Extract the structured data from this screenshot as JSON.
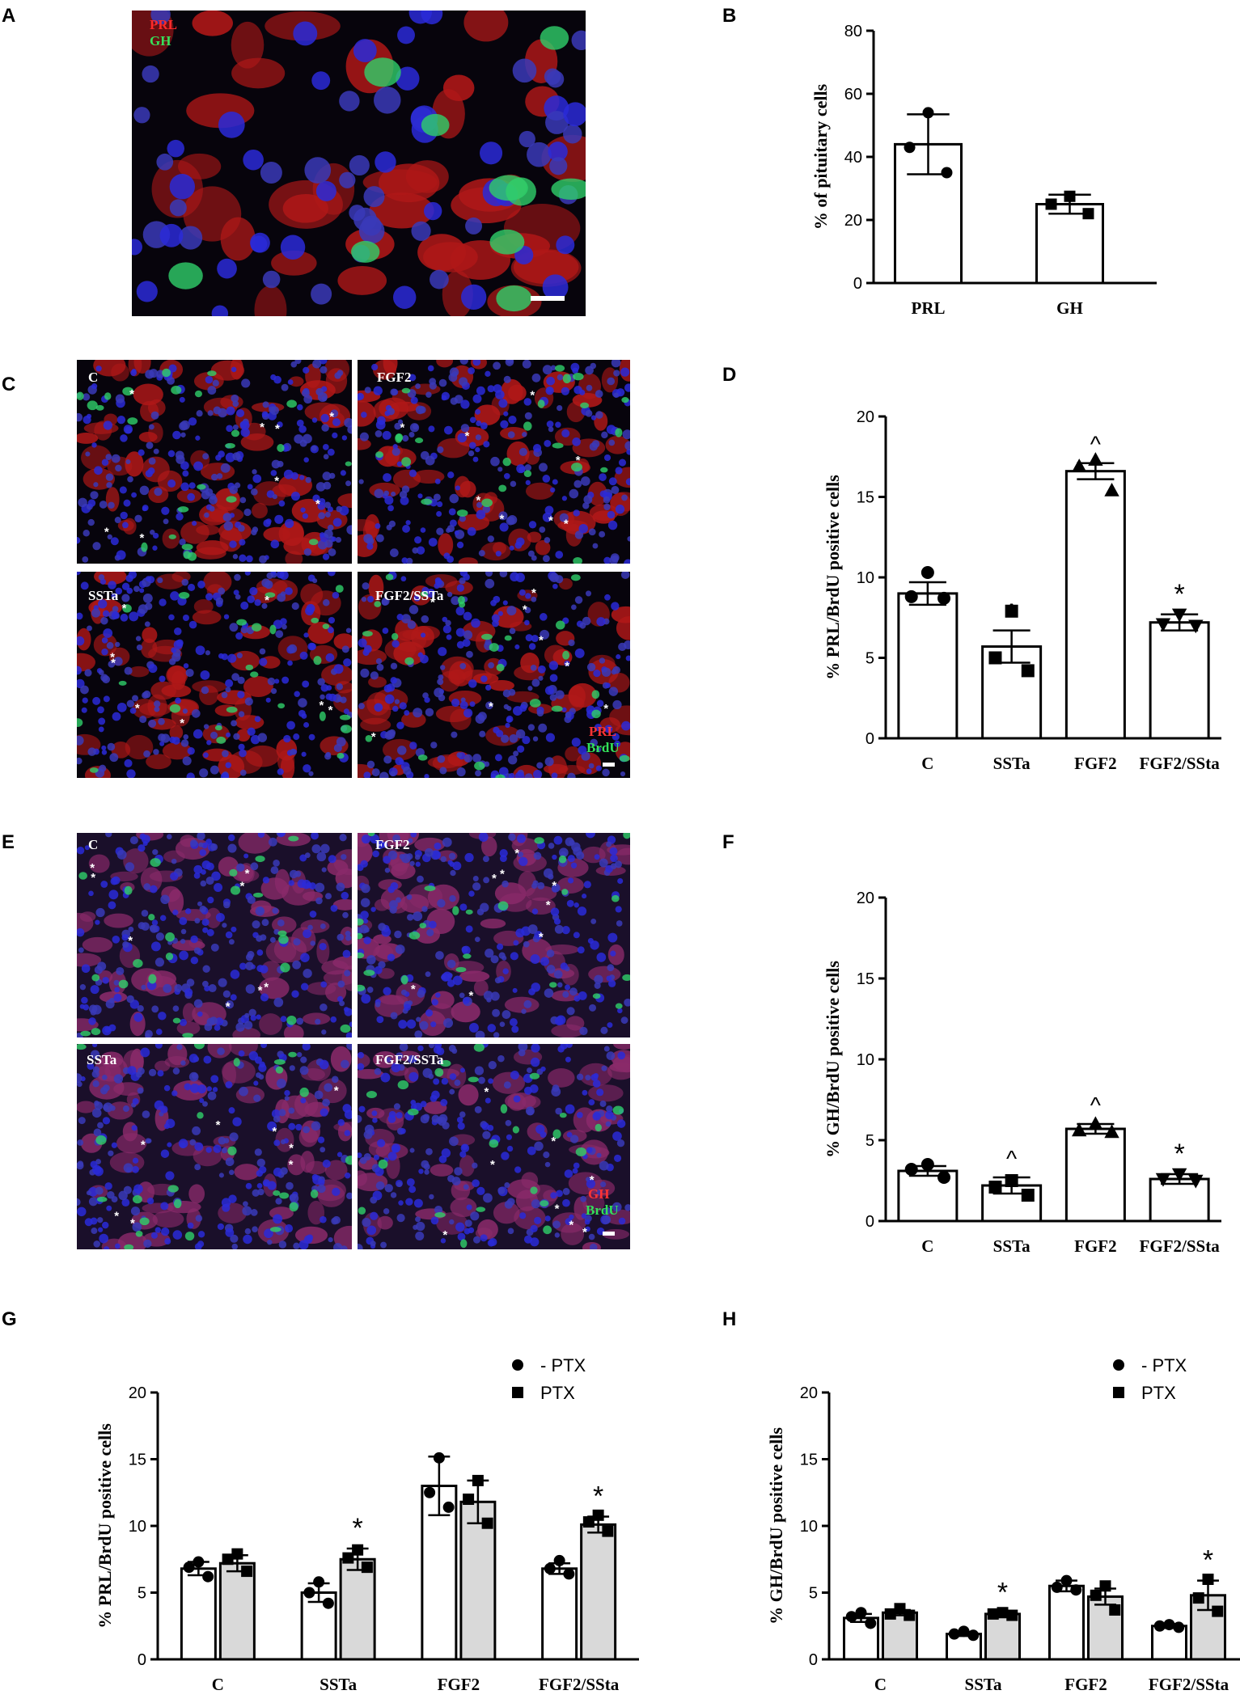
{
  "panels": {
    "A": {
      "letter": "A",
      "stains": [
        {
          "label": "PRL",
          "color": "#ff2a2a"
        },
        {
          "label": "GH",
          "color": "#36e05a"
        }
      ]
    },
    "B": {
      "letter": "B"
    },
    "C": {
      "letter": "C",
      "subpanels": [
        "C",
        "FGF2",
        "SSTa",
        "FGF2/SSTa"
      ],
      "stains": [
        {
          "label": "PRL",
          "color": "#ff3333"
        },
        {
          "label": "BrdU",
          "color": "#33e05a"
        }
      ]
    },
    "D": {
      "letter": "D"
    },
    "E": {
      "letter": "E",
      "subpanels": [
        "C",
        "FGF2",
        "SSTa",
        "FGF2/SSTa"
      ],
      "stains": [
        {
          "label": "GH",
          "color": "#ff3333"
        },
        {
          "label": "BrdU",
          "color": "#33e05a"
        }
      ]
    },
    "F": {
      "letter": "F"
    },
    "G": {
      "letter": "G"
    },
    "H": {
      "letter": "H"
    }
  },
  "chart_data": [
    {
      "id": "B",
      "type": "bar",
      "categories": [
        "PRL",
        "GH"
      ],
      "values": [
        44,
        25
      ],
      "errors": [
        9.5,
        3
      ],
      "points": [
        [
          54,
          43,
          35
        ],
        [
          27.5,
          25,
          22
        ]
      ],
      "markers": [
        "circle",
        "square"
      ],
      "ylabel": "% of pituitary cells",
      "ylim": [
        0,
        80
      ],
      "yticks": [
        0,
        20,
        40,
        60,
        80
      ],
      "annotations": [
        "",
        ""
      ]
    },
    {
      "id": "D",
      "type": "bar",
      "categories": [
        "C",
        "SSTa",
        "FGF2",
        "FGF2/SSta"
      ],
      "values": [
        9.0,
        5.7,
        16.6,
        7.2
      ],
      "errors": [
        0.7,
        1.0,
        0.5,
        0.5
      ],
      "points": [
        [
          10.3,
          8.8,
          8.7
        ],
        [
          7.9,
          5.0,
          4.2
        ],
        [
          17.3,
          16.9,
          15.4
        ],
        [
          7.7,
          7.1,
          7.0
        ]
      ],
      "markers": [
        "circle",
        "square",
        "triangle",
        "invtriangle"
      ],
      "ylabel": "% PRL/BrdU positive cells",
      "ylim": [
        0,
        20
      ],
      "yticks": [
        0,
        5,
        10,
        15,
        20
      ],
      "annotations": [
        "",
        "^",
        "^",
        "*"
      ]
    },
    {
      "id": "F",
      "type": "bar",
      "categories": [
        "C",
        "SSTa",
        "FGF2",
        "FGF2/SSta"
      ],
      "values": [
        3.1,
        2.2,
        5.7,
        2.6
      ],
      "errors": [
        0.3,
        0.5,
        0.3,
        0.3
      ],
      "points": [
        [
          3.5,
          3.2,
          2.7
        ],
        [
          2.5,
          2.1,
          1.6
        ],
        [
          6.0,
          5.6,
          5.5
        ],
        [
          2.9,
          2.6,
          2.5
        ]
      ],
      "markers": [
        "circle",
        "square",
        "triangle",
        "invtriangle"
      ],
      "ylabel": "% GH/BrdU positive cells",
      "ylim": [
        0,
        20
      ],
      "yticks": [
        0,
        5,
        10,
        15,
        20
      ],
      "annotations": [
        "",
        "^",
        "^",
        "*"
      ]
    },
    {
      "id": "G",
      "type": "bar",
      "categories": [
        "C",
        "SSTa",
        "FGF2",
        "FGF2/SSta"
      ],
      "series": [
        {
          "name": "- PTX",
          "marker": "circle",
          "fill": "#ffffff",
          "values": [
            6.8,
            5.0,
            13.0,
            6.8
          ],
          "errors": [
            0.5,
            0.7,
            2.2,
            0.4
          ],
          "points": [
            [
              7.3,
              6.9,
              6.2
            ],
            [
              5.8,
              5.0,
              4.2
            ],
            [
              15.1,
              12.5,
              11.4
            ],
            [
              7.4,
              6.8,
              6.4
            ]
          ]
        },
        {
          "name": "PTX",
          "marker": "square",
          "fill": "#d9d9d9",
          "values": [
            7.2,
            7.5,
            11.8,
            10.1
          ],
          "errors": [
            0.6,
            0.8,
            1.6,
            0.6
          ],
          "points": [
            [
              7.9,
              7.5,
              6.6
            ],
            [
              8.2,
              7.6,
              6.9
            ],
            [
              13.4,
              12.0,
              10.2
            ],
            [
              10.8,
              10.3,
              9.6
            ]
          ]
        }
      ],
      "ylabel": "% PRL/BrdU positive cells",
      "ylim": [
        0,
        20
      ],
      "yticks": [
        0,
        5,
        10,
        15,
        20
      ],
      "annotations": [
        [
          "",
          ""
        ],
        [
          "",
          "*"
        ],
        [
          "",
          ""
        ],
        [
          "",
          "*"
        ]
      ]
    },
    {
      "id": "H",
      "type": "bar",
      "categories": [
        "C",
        "SSTa",
        "FGF2",
        "FGF2/SSta"
      ],
      "series": [
        {
          "name": "- PTX",
          "marker": "circle",
          "fill": "#ffffff",
          "values": [
            3.1,
            1.9,
            5.5,
            2.5
          ],
          "errors": [
            0.3,
            0.15,
            0.4,
            0.15
          ],
          "points": [
            [
              3.5,
              3.2,
              2.7
            ],
            [
              2.1,
              1.9,
              1.8
            ],
            [
              5.9,
              5.4,
              5.2
            ],
            [
              2.6,
              2.5,
              2.4
            ]
          ]
        },
        {
          "name": "PTX",
          "marker": "square",
          "fill": "#d9d9d9",
          "values": [
            3.5,
            3.4,
            4.7,
            4.8
          ],
          "errors": [
            0.2,
            0.1,
            0.6,
            1.1
          ],
          "points": [
            [
              3.8,
              3.4,
              3.3
            ],
            [
              3.5,
              3.4,
              3.3
            ],
            [
              5.5,
              4.8,
              3.7
            ],
            [
              6.0,
              4.6,
              3.6
            ]
          ]
        }
      ],
      "ylabel": "% GH/BrdU positive cells",
      "ylim": [
        0,
        20
      ],
      "yticks": [
        0,
        5,
        10,
        15,
        20
      ],
      "annotations": [
        [
          "",
          ""
        ],
        [
          "",
          "*"
        ],
        [
          "",
          ""
        ],
        [
          "",
          "*"
        ]
      ]
    }
  ]
}
